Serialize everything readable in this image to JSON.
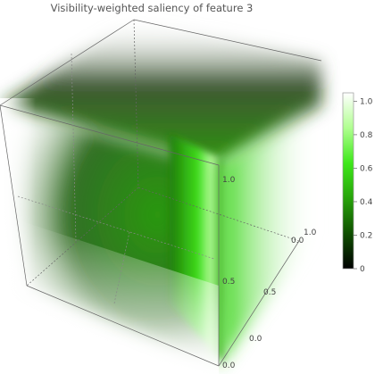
{
  "chart_data": {
    "type": "volume",
    "title": "Visibility-weighted saliency of feature 3",
    "axes": {
      "x": {
        "range": [
          0,
          1
        ],
        "ticks": [
          "0.0",
          "0.5",
          "1.0"
        ],
        "label": ""
      },
      "y": {
        "range": [
          0,
          1
        ],
        "ticks": [
          "0.0",
          "0.5",
          "1.0"
        ],
        "label": ""
      },
      "z": {
        "range": [
          0,
          1
        ],
        "ticks": [
          "0.0",
          "0.5",
          "1.0"
        ],
        "label": ""
      }
    },
    "colorbar": {
      "range": [
        0,
        1.05
      ],
      "ticks": [
        "0",
        "0.2",
        "0.4",
        "0.6",
        "0.8",
        "1.0"
      ],
      "tick_values": [
        0,
        0.2,
        0.4,
        0.6,
        0.8,
        1.0
      ],
      "colors": [
        "#000000",
        "#0f4f00",
        "#27a30a",
        "#3ee81a",
        "#b0ff90",
        "#ffffff"
      ]
    },
    "colormap": "black-green-white",
    "legend_position": "right"
  }
}
